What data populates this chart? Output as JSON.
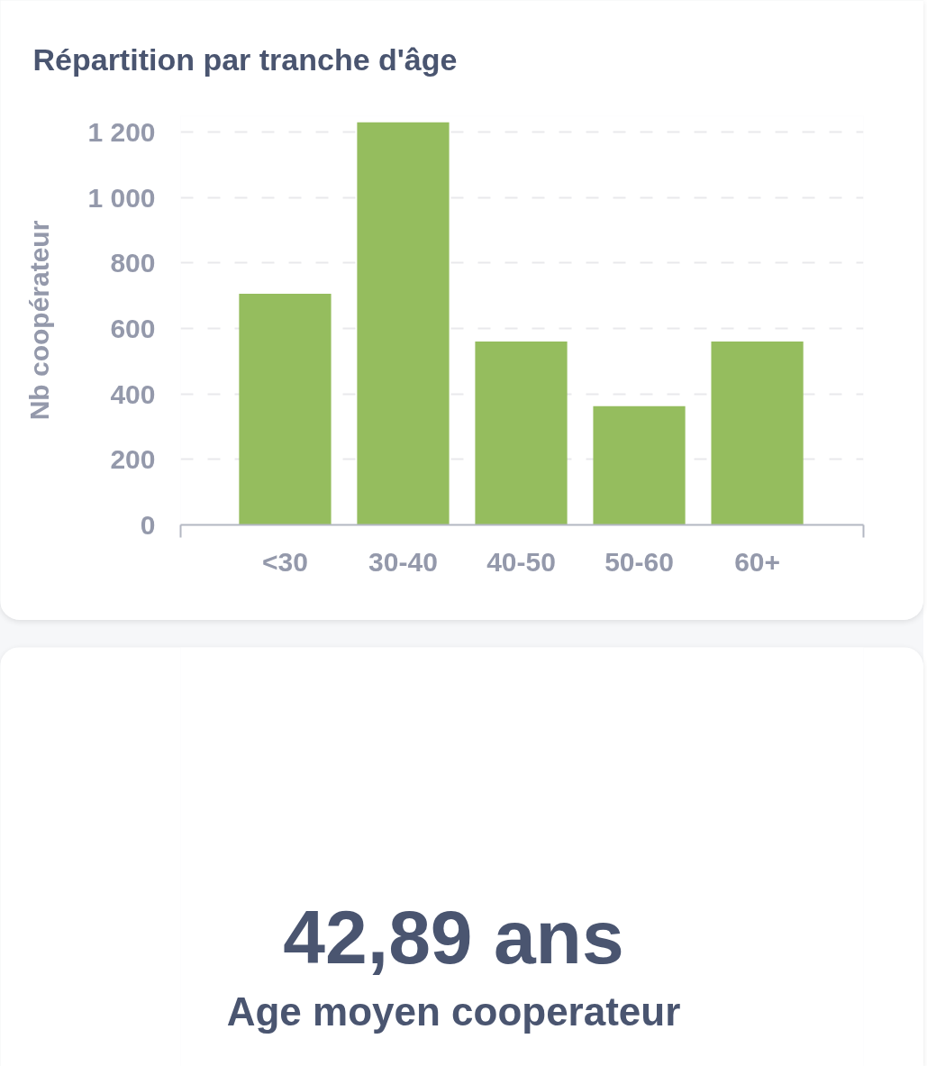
{
  "chart_data": [
    {
      "type": "bar",
      "title": "Répartition par tranche d'âge",
      "ylabel": "Nb coopérateur",
      "categories": [
        "<30",
        "30-40",
        "40-50",
        "50-60",
        "60+"
      ],
      "values": [
        706,
        1230,
        560,
        363,
        560
      ],
      "color": "#95bd5e",
      "ylim": [
        0,
        1250
      ],
      "yticks": [
        0,
        200,
        400,
        600,
        800,
        {
          "value": 1000,
          "label": "1 000"
        },
        {
          "value": 1200,
          "label": "1 200"
        }
      ],
      "grid": "y"
    },
    {
      "type": "other",
      "title": "42,89 ans",
      "subtitle": "Age moyen cooperateur"
    }
  ]
}
